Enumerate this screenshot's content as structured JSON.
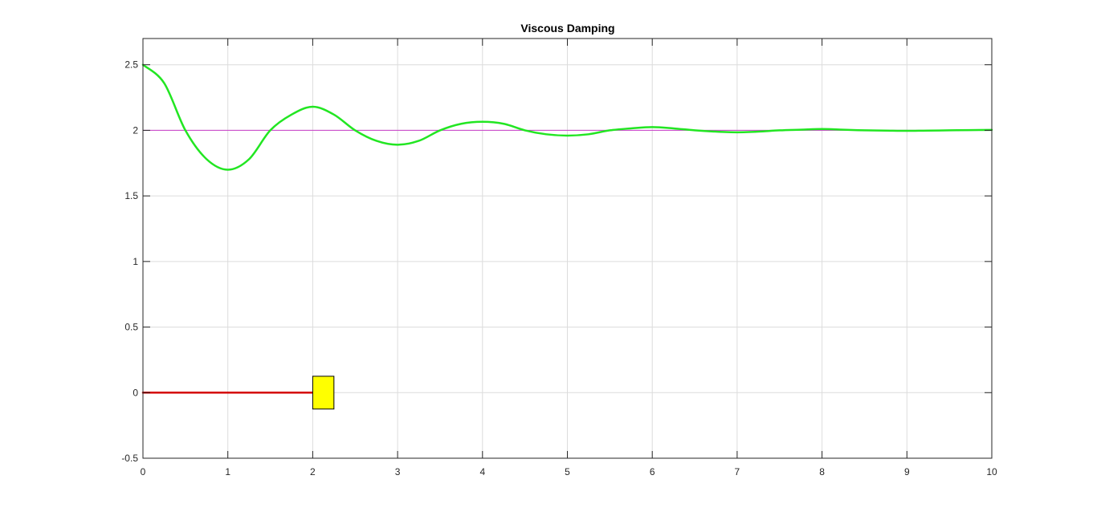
{
  "chart_data": {
    "type": "line",
    "title": "Viscous Damping",
    "xlabel": "",
    "ylabel": "",
    "xlim": [
      0,
      10
    ],
    "ylim": [
      -0.5,
      2.7
    ],
    "x_ticks": [
      "0",
      "1",
      "2",
      "3",
      "4",
      "5",
      "6",
      "7",
      "8",
      "9",
      "10"
    ],
    "y_ticks": [
      "-0.5",
      "0",
      "0.5",
      "1",
      "1.5",
      "2",
      "2.5"
    ],
    "grid": true,
    "colors": {
      "response": "#22e622",
      "reference": "#c83cc8",
      "spring": "#d40000",
      "mass_fill": "#ffff00",
      "mass_edge": "#000000",
      "grid": "#dcdcdc",
      "axes": "#262626"
    },
    "series": [
      {
        "kind": "damped-response",
        "x": [
          0,
          0.25,
          0.5,
          0.75,
          1,
          1.25,
          1.5,
          1.75,
          2,
          2.25,
          2.5,
          2.75,
          3,
          3.25,
          3.5,
          3.75,
          4,
          4.25,
          4.5,
          4.75,
          5,
          5.25,
          5.5,
          5.75,
          6,
          6.25,
          6.5,
          6.75,
          7,
          7.25,
          7.5,
          7.75,
          8,
          8.25,
          8.5,
          8.75,
          9,
          9.25,
          9.5,
          9.75,
          10
        ],
        "y": [
          2.5,
          2.36,
          2.0,
          1.78,
          1.7,
          1.78,
          2.0,
          2.12,
          2.18,
          2.12,
          2.0,
          1.92,
          1.89,
          1.92,
          2.0,
          2.05,
          2.065,
          2.05,
          2.0,
          1.97,
          1.96,
          1.97,
          2.0,
          2.015,
          2.025,
          2.015,
          2.0,
          1.99,
          1.985,
          1.99,
          2.0,
          2.005,
          2.01,
          2.005,
          2.0,
          1.998,
          1.996,
          1.998,
          2.0,
          2.002,
          2.003
        ]
      },
      {
        "kind": "reference-line",
        "x": [
          0,
          10
        ],
        "y": [
          2,
          2
        ]
      },
      {
        "kind": "spring-line",
        "x": [
          0,
          2
        ],
        "y": [
          0,
          0
        ]
      }
    ],
    "mass_block": {
      "x": [
        2.0,
        2.25
      ],
      "y": [
        -0.125,
        0.125
      ]
    }
  }
}
